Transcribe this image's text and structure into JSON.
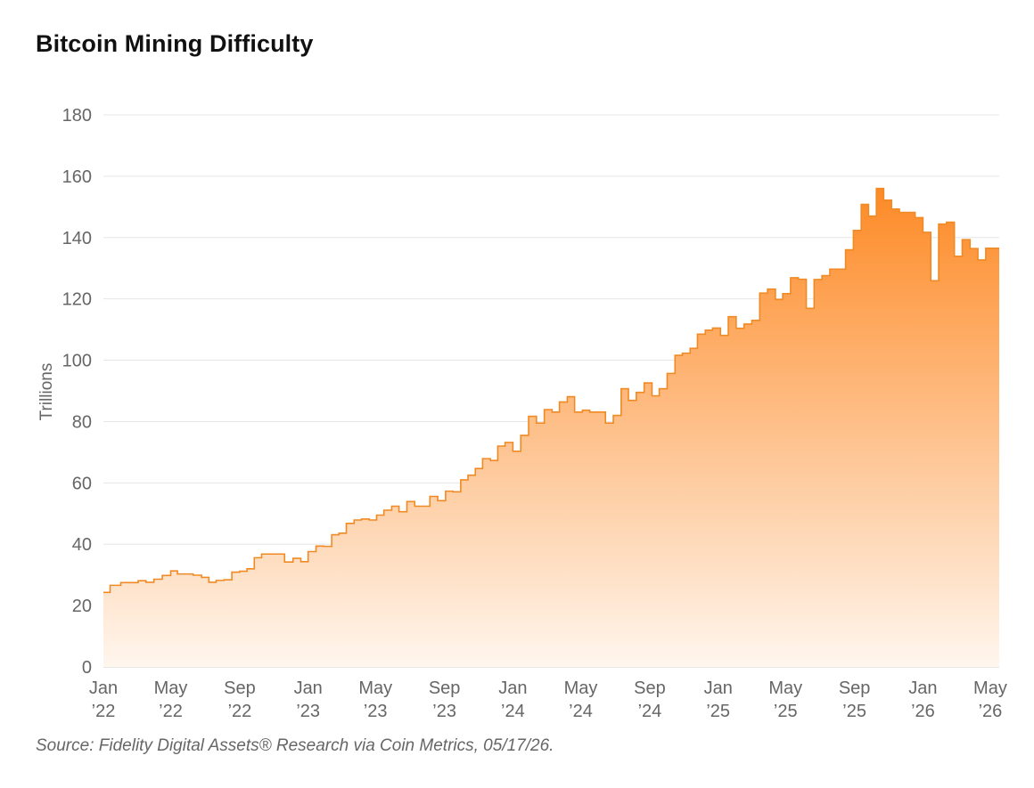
{
  "title": "Bitcoin Mining Difficulty",
  "source": "Source: Fidelity Digital Assets® Research via Coin Metrics, 05/17/26.",
  "colors": {
    "line": "#f08a24",
    "fill_top": "#fd8a26",
    "fill_bottom": "#fff6ee",
    "grid": "#e6e6e6",
    "axis": "#cccccc"
  },
  "chart_data": {
    "type": "area",
    "title": "Bitcoin Mining Difficulty",
    "ylabel": "Trillions",
    "ylim": [
      0,
      180
    ],
    "yticks": [
      0,
      20,
      40,
      60,
      80,
      100,
      120,
      140,
      160,
      180
    ],
    "xlim": [
      "2022-01-01",
      "2026-05-17"
    ],
    "xticks": [
      {
        "date": "2022-01-01",
        "line1": "Jan",
        "line2": "’22"
      },
      {
        "date": "2022-05-01",
        "line1": "May",
        "line2": "’22"
      },
      {
        "date": "2022-09-01",
        "line1": "Sep",
        "line2": "’22"
      },
      {
        "date": "2023-01-01",
        "line1": "Jan",
        "line2": "’23"
      },
      {
        "date": "2023-05-01",
        "line1": "May",
        "line2": "’23"
      },
      {
        "date": "2023-09-01",
        "line1": "Sep",
        "line2": "’23"
      },
      {
        "date": "2024-01-01",
        "line1": "Jan",
        "line2": "’24"
      },
      {
        "date": "2024-05-01",
        "line1": "May",
        "line2": "’24"
      },
      {
        "date": "2024-09-01",
        "line1": "Sep",
        "line2": "’24"
      },
      {
        "date": "2025-01-01",
        "line1": "Jan",
        "line2": "’25"
      },
      {
        "date": "2025-05-01",
        "line1": "May",
        "line2": "’25"
      },
      {
        "date": "2025-09-01",
        "line1": "Sep",
        "line2": "’25"
      },
      {
        "date": "2026-01-01",
        "line1": "Jan",
        "line2": "’26"
      },
      {
        "date": "2026-05-01",
        "line1": "May",
        "line2": "’26"
      }
    ],
    "grid": true,
    "step": true,
    "series": [
      {
        "x": [
          "2022-01-01",
          "2022-01-13",
          "2022-02-01",
          "2022-02-15",
          "2022-03-04",
          "2022-03-18",
          "2022-04-01",
          "2022-04-16",
          "2022-05-01",
          "2022-05-13",
          "2022-05-28",
          "2022-06-10",
          "2022-06-25",
          "2022-07-08",
          "2022-07-21",
          "2022-08-04",
          "2022-08-18",
          "2022-09-01",
          "2022-09-14",
          "2022-09-27",
          "2022-10-10",
          "2022-10-23",
          "2022-11-06",
          "2022-11-20",
          "2022-12-05",
          "2022-12-19",
          "2023-01-01",
          "2023-01-15",
          "2023-01-29",
          "2023-02-12",
          "2023-02-25",
          "2023-03-10",
          "2023-03-24",
          "2023-04-06",
          "2023-04-20",
          "2023-05-03",
          "2023-05-16",
          "2023-05-30",
          "2023-06-12",
          "2023-06-26",
          "2023-07-10",
          "2023-07-23",
          "2023-08-06",
          "2023-08-20",
          "2023-09-03",
          "2023-09-16",
          "2023-09-30",
          "2023-10-13",
          "2023-10-26",
          "2023-11-08",
          "2023-11-22",
          "2023-12-05",
          "2023-12-18",
          "2024-01-01",
          "2024-01-15",
          "2024-01-29",
          "2024-02-12",
          "2024-02-26",
          "2024-03-11",
          "2024-03-24",
          "2024-04-07",
          "2024-04-20",
          "2024-05-04",
          "2024-05-17",
          "2024-05-31",
          "2024-06-14",
          "2024-06-28",
          "2024-07-12",
          "2024-07-25",
          "2024-08-08",
          "2024-08-22",
          "2024-09-05",
          "2024-09-18",
          "2024-10-02",
          "2024-10-16",
          "2024-10-29",
          "2024-11-12",
          "2024-11-25",
          "2024-12-09",
          "2024-12-22",
          "2025-01-05",
          "2025-01-19",
          "2025-02-02",
          "2025-02-16",
          "2025-03-02",
          "2025-03-16",
          "2025-03-30",
          "2025-04-13",
          "2025-04-26",
          "2025-05-10",
          "2025-05-24",
          "2025-06-07",
          "2025-06-21",
          "2025-07-05",
          "2025-07-19",
          "2025-08-02",
          "2025-08-16",
          "2025-08-30",
          "2025-09-13",
          "2025-09-26",
          "2025-10-10",
          "2025-10-23",
          "2025-11-06",
          "2025-11-20",
          "2025-12-04",
          "2025-12-18",
          "2026-01-01",
          "2026-01-15",
          "2026-01-29",
          "2026-02-12",
          "2026-02-26",
          "2026-03-12",
          "2026-03-26",
          "2026-04-09",
          "2026-04-23",
          "2026-05-07",
          "2026-05-17"
        ],
        "y": [
          24.3,
          26.6,
          27.5,
          27.5,
          28.1,
          27.6,
          28.6,
          29.8,
          31.3,
          30.3,
          30.3,
          29.9,
          29.2,
          27.6,
          28.2,
          28.4,
          30.9,
          31.2,
          32.0,
          35.6,
          36.8,
          36.8,
          36.8,
          34.2,
          35.4,
          34.3,
          37.6,
          39.4,
          39.3,
          43.1,
          43.6,
          46.8,
          47.9,
          48.2,
          47.9,
          49.5,
          51.1,
          52.4,
          50.6,
          53.9,
          52.4,
          52.4,
          55.6,
          54.2,
          57.3,
          57.1,
          61.0,
          62.5,
          64.7,
          67.9,
          67.3,
          72.0,
          73.2,
          70.3,
          75.5,
          81.7,
          79.5,
          83.9,
          83.1,
          86.4,
          88.1,
          83.1,
          83.7,
          83.1,
          83.1,
          79.5,
          82.0,
          90.7,
          86.9,
          89.5,
          92.6,
          88.4,
          90.7,
          95.7,
          101.6,
          102.3,
          103.9,
          108.5,
          109.8,
          110.5,
          108.1,
          114.2,
          110.4,
          111.8,
          113.0,
          121.9,
          123.2,
          119.8,
          121.7,
          126.9,
          126.4,
          116.9,
          126.3,
          127.6,
          129.7,
          129.7,
          136.0,
          142.3,
          150.8,
          147.0,
          156.0,
          152.2,
          149.3,
          148.2,
          148.2,
          146.5,
          141.7,
          125.9,
          144.4,
          145.0,
          133.9,
          139.3,
          136.4,
          132.7,
          136.5,
          136.5,
          136.5
        ]
      }
    ]
  }
}
